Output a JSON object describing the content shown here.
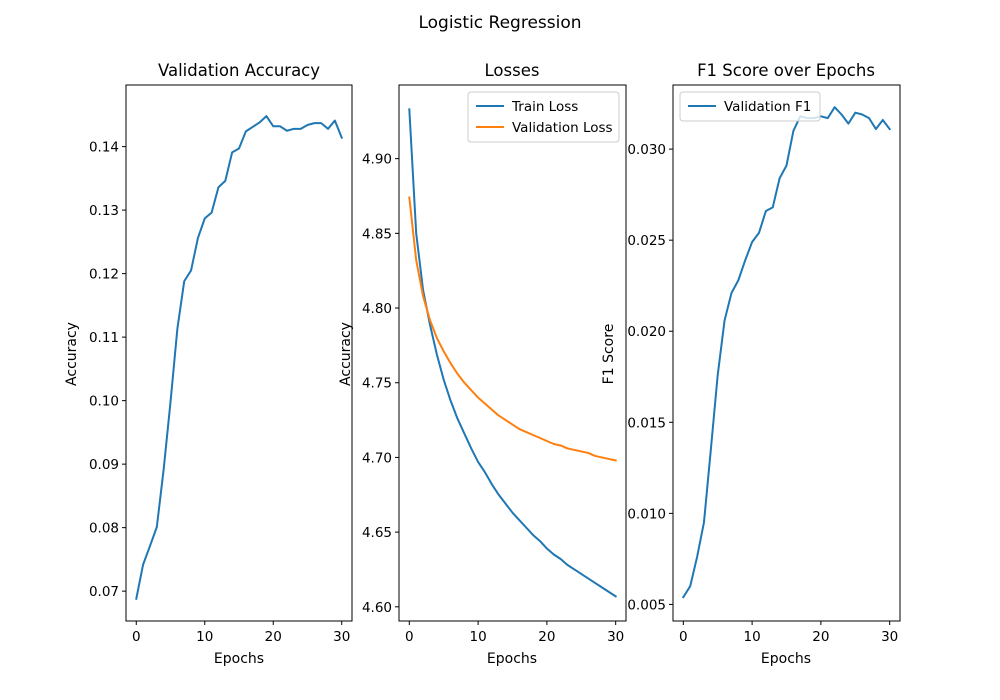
{
  "figure": {
    "title": "Logistic Regression"
  },
  "chart_data": [
    {
      "type": "line",
      "title": "Validation Accuracy",
      "xlabel": "Epochs",
      "ylabel": "Accuracy",
      "xlim": [
        -1.5,
        31.5
      ],
      "ylim": [
        0.0653,
        0.1497
      ],
      "xticks": [
        0,
        10,
        20,
        30
      ],
      "yticks": [
        0.07,
        0.08,
        0.09,
        0.1,
        0.11,
        0.12,
        0.13,
        0.14
      ],
      "ytick_decimals": 2,
      "legend": null,
      "series": [
        {
          "color": "#1f77b4",
          "x": [
            0,
            1,
            2,
            3,
            4,
            5,
            6,
            7,
            8,
            9,
            10,
            11,
            12,
            13,
            14,
            15,
            16,
            17,
            18,
            19,
            20,
            21,
            22,
            23,
            24,
            25,
            26,
            27,
            28,
            29,
            30
          ],
          "values": [
            0.0688,
            0.0742,
            0.0771,
            0.0801,
            0.0892,
            0.0998,
            0.1113,
            0.1188,
            0.1205,
            0.1256,
            0.1287,
            0.1296,
            0.1336,
            0.1346,
            0.1391,
            0.1397,
            0.1424,
            0.1431,
            0.1438,
            0.1448,
            0.1432,
            0.1432,
            0.1425,
            0.1428,
            0.1428,
            0.1434,
            0.1437,
            0.1437,
            0.1428,
            0.1441,
            0.1414
          ]
        }
      ]
    },
    {
      "type": "line",
      "title": "Losses",
      "xlabel": "Epochs",
      "ylabel": "Accuracy",
      "xlim": [
        -1.5,
        31.5
      ],
      "ylim": [
        4.5905,
        4.9493
      ],
      "xticks": [
        0,
        10,
        20,
        30
      ],
      "yticks": [
        4.6,
        4.65,
        4.7,
        4.75,
        4.8,
        4.85,
        4.9
      ],
      "ytick_decimals": 2,
      "legend": "upper right",
      "series": [
        {
          "name": "Train Loss",
          "color": "#1f77b4",
          "x": [
            0,
            1,
            2,
            3,
            4,
            5,
            6,
            7,
            8,
            9,
            10,
            11,
            12,
            13,
            14,
            15,
            16,
            17,
            18,
            19,
            20,
            21,
            22,
            23,
            24,
            25,
            26,
            27,
            28,
            29,
            30
          ],
          "values": [
            4.933,
            4.85,
            4.812,
            4.789,
            4.769,
            4.752,
            4.738,
            4.726,
            4.716,
            4.706,
            4.697,
            4.69,
            4.682,
            4.675,
            4.669,
            4.663,
            4.658,
            4.653,
            4.648,
            4.644,
            4.639,
            4.635,
            4.632,
            4.628,
            4.625,
            4.622,
            4.619,
            4.616,
            4.613,
            4.61,
            4.607
          ]
        },
        {
          "name": "Validation Loss",
          "color": "#ff7f0e",
          "x": [
            0,
            1,
            2,
            3,
            4,
            5,
            6,
            7,
            8,
            9,
            10,
            11,
            12,
            13,
            14,
            15,
            16,
            17,
            18,
            19,
            20,
            21,
            22,
            23,
            24,
            25,
            26,
            27,
            28,
            29,
            30
          ],
          "values": [
            4.874,
            4.832,
            4.808,
            4.792,
            4.78,
            4.771,
            4.763,
            4.756,
            4.75,
            4.745,
            4.74,
            4.736,
            4.732,
            4.728,
            4.725,
            4.722,
            4.719,
            4.717,
            4.715,
            4.713,
            4.711,
            4.709,
            4.708,
            4.706,
            4.705,
            4.704,
            4.703,
            4.701,
            4.7,
            4.699,
            4.698
          ]
        }
      ]
    },
    {
      "type": "line",
      "title": "F1 Score over Epochs",
      "xlabel": "Epochs",
      "ylabel": "F1 Score",
      "xlim": [
        -1.5,
        31.5
      ],
      "ylim": [
        0.00409,
        0.03352
      ],
      "xticks": [
        0,
        10,
        20,
        30
      ],
      "yticks": [
        0.005,
        0.01,
        0.015,
        0.02,
        0.025,
        0.03
      ],
      "ytick_decimals": 3,
      "legend": "upper left",
      "series": [
        {
          "name": "Validation F1",
          "color": "#1f77b4",
          "x": [
            0,
            1,
            2,
            3,
            4,
            5,
            6,
            7,
            8,
            9,
            10,
            11,
            12,
            13,
            14,
            15,
            16,
            17,
            18,
            19,
            20,
            21,
            22,
            23,
            24,
            25,
            26,
            27,
            28,
            29,
            30
          ],
          "values": [
            0.0054,
            0.006,
            0.0076,
            0.0095,
            0.0135,
            0.0176,
            0.0206,
            0.0221,
            0.0228,
            0.0239,
            0.0249,
            0.0254,
            0.0266,
            0.0268,
            0.0284,
            0.0291,
            0.031,
            0.0318,
            0.0317,
            0.0317,
            0.0318,
            0.0317,
            0.0323,
            0.0319,
            0.0314,
            0.032,
            0.0319,
            0.0317,
            0.0311,
            0.0316,
            0.0311
          ]
        }
      ]
    }
  ]
}
